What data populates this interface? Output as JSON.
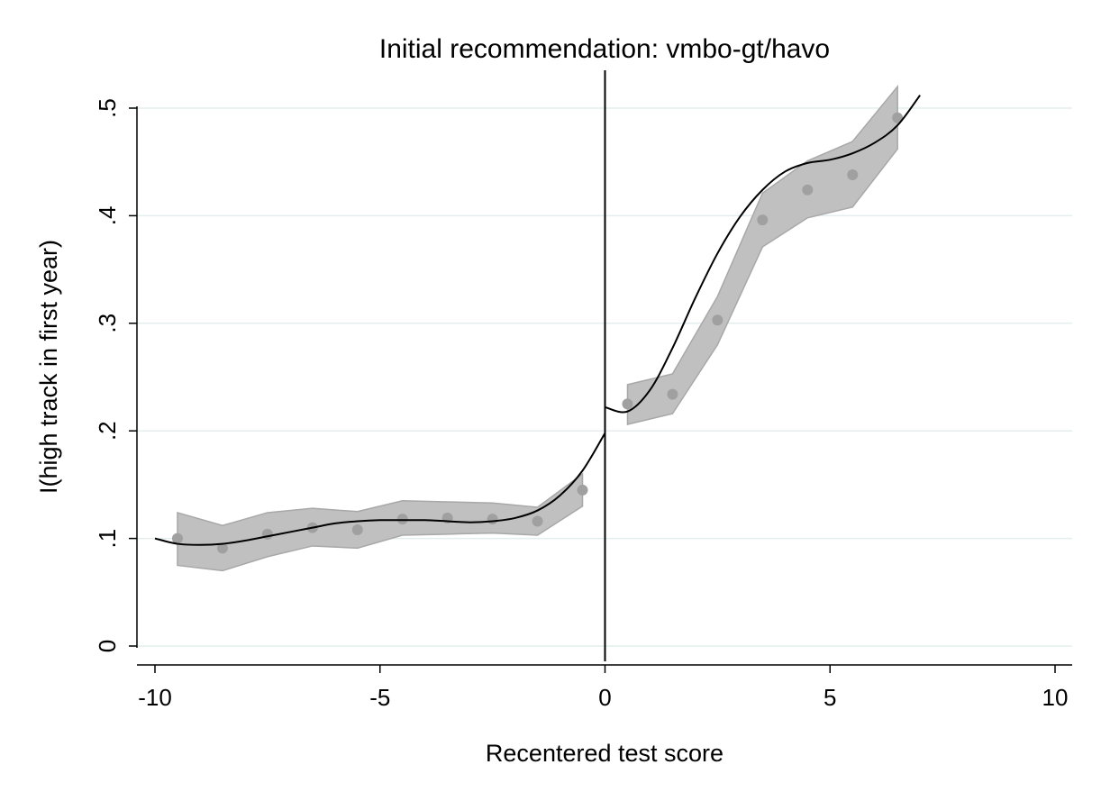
{
  "chart_data": {
    "type": "scatter",
    "title": "Initial recommendation: vmbo-gt/havo",
    "xlabel": "Recentered test score",
    "ylabel": "I(high track in first year)",
    "xlim": [
      -10,
      10
    ],
    "ylim": [
      0,
      0.5
    ],
    "xticks": [
      -10,
      -5,
      0,
      5,
      10
    ],
    "xtick_labels": [
      "-10",
      "-5",
      "0",
      "5",
      "10"
    ],
    "yticks": [
      0,
      0.1,
      0.2,
      0.3,
      0.4,
      0.5
    ],
    "ytick_labels": [
      "0",
      ".1",
      ".2",
      ".3",
      ".4",
      ".5"
    ],
    "grid": true,
    "cutoff_x": 0,
    "colors": {
      "points": "#a0a0a0",
      "ci_band": "#c0c0c0",
      "ci_band_edge": "#a8a8a8",
      "fit_line": "#000000",
      "grid": "#e4eeee",
      "axis": "#000000"
    },
    "bins": {
      "x": [
        -9.5,
        -8.5,
        -7.5,
        -6.5,
        -5.5,
        -4.5,
        -3.5,
        -2.5,
        -1.5,
        -0.5,
        0.5,
        1.5,
        2.5,
        3.5,
        4.5,
        5.5,
        6.5
      ],
      "y": [
        0.1,
        0.091,
        0.104,
        0.11,
        0.108,
        0.118,
        0.119,
        0.118,
        0.116,
        0.145,
        0.225,
        0.234,
        0.303,
        0.396,
        0.424,
        0.438,
        0.491
      ],
      "ci_low": [
        0.075,
        0.07,
        0.083,
        0.093,
        0.091,
        0.103,
        0.104,
        0.105,
        0.103,
        0.13,
        0.206,
        0.216,
        0.28,
        0.371,
        0.398,
        0.408,
        0.462
      ],
      "ci_high": [
        0.124,
        0.112,
        0.124,
        0.128,
        0.125,
        0.135,
        0.134,
        0.133,
        0.129,
        0.16,
        0.243,
        0.253,
        0.325,
        0.421,
        0.451,
        0.469,
        0.52
      ]
    },
    "fit_left": {
      "x": [
        -10,
        -9.5,
        -9,
        -8.5,
        -8,
        -7.5,
        -7,
        -6.5,
        -6,
        -5.5,
        -5,
        -4.5,
        -4,
        -3.5,
        -3,
        -2.5,
        -2,
        -1.5,
        -1,
        -0.5,
        0
      ],
      "y": [
        0.1,
        0.095,
        0.094,
        0.095,
        0.098,
        0.102,
        0.106,
        0.11,
        0.114,
        0.116,
        0.117,
        0.117,
        0.117,
        0.116,
        0.115,
        0.116,
        0.119,
        0.126,
        0.14,
        0.163,
        0.198
      ]
    },
    "fit_right": {
      "x": [
        0,
        0.5,
        1,
        1.5,
        2,
        2.5,
        3,
        3.5,
        4,
        4.5,
        5,
        5.5,
        6,
        6.5,
        7
      ],
      "y": [
        0.222,
        0.218,
        0.238,
        0.277,
        0.323,
        0.365,
        0.399,
        0.424,
        0.441,
        0.449,
        0.452,
        0.458,
        0.468,
        0.484,
        0.512
      ]
    }
  }
}
